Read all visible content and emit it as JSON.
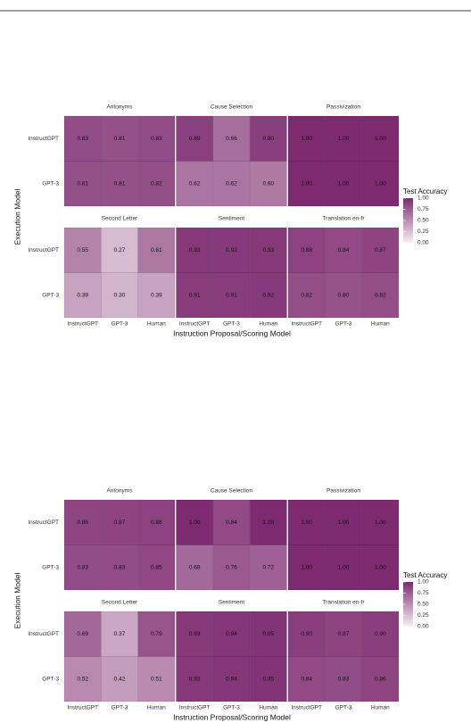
{
  "chart_data": [
    {
      "type": "heatmap",
      "x_label": "Instruction Proposal/Scoring Model",
      "y_label": "Execution Model",
      "x_categories": [
        "InstructGPT",
        "GPT-3",
        "Human"
      ],
      "y_categories": [
        "InstructGPT",
        "GPT-3"
      ],
      "legend_title": "Test Accuracy",
      "clim": [
        0,
        1
      ],
      "cticks": [
        {
          "value": 1,
          "label": "1.00"
        },
        0.75,
        {
          "value": 0.5,
          "label": "0.50"
        },
        0.25,
        {
          "value": 0,
          "label": "0.00"
        }
      ],
      "low_color": "#f7f0f5",
      "high_color": "#7d2a70",
      "facets": [
        {
          "title": "Antonyms",
          "values": [
            [
              0.83,
              0.81,
              0.83
            ],
            [
              0.81,
              0.81,
              0.82
            ]
          ],
          "value_labels": [
            [
              "0.83",
              "0.81",
              "0.83"
            ],
            [
              "0.81",
              "0.81",
              "0.82"
            ]
          ]
        },
        {
          "title": "Cause Selection",
          "values": [
            [
              0.89,
              0.66,
              0.9
            ],
            [
              0.62,
              0.62,
              0.6
            ]
          ],
          "value_labels": [
            [
              "0.89",
              "0.66",
              "0.90"
            ],
            [
              "0.62",
              "0.62",
              "0.60"
            ]
          ]
        },
        {
          "title": "Passivization",
          "values": [
            [
              1,
              1,
              1
            ],
            [
              1,
              1,
              1
            ]
          ],
          "value_labels": [
            [
              "1.00",
              "1.00",
              "1.00"
            ],
            [
              "1.00",
              "1.00",
              "1.00"
            ]
          ]
        },
        {
          "title": "Second Letter",
          "values": [
            [
              0.55,
              0.27,
              0.61
            ],
            [
              0.39,
              0.3,
              0.39
            ]
          ],
          "value_labels": [
            [
              "0.55",
              "0.27",
              "0.61"
            ],
            [
              "0.39",
              "0.30",
              "0.39"
            ]
          ]
        },
        {
          "title": "Sentiment",
          "values": [
            [
              0.93,
              0.92,
              0.93
            ],
            [
              0.91,
              0.91,
              0.92
            ]
          ],
          "value_labels": [
            [
              "0.93",
              "0.92",
              "0.93"
            ],
            [
              "0.91",
              "0.91",
              "0.92"
            ]
          ]
        },
        {
          "title": "Translation en-fr",
          "values": [
            [
              0.88,
              0.84,
              0.87
            ],
            [
              0.82,
              0.8,
              0.82
            ]
          ],
          "value_labels": [
            [
              "0.88",
              "0.84",
              "0.87"
            ],
            [
              "0.82",
              "0.80",
              "0.82"
            ]
          ]
        }
      ]
    },
    {
      "type": "heatmap",
      "x_label": "Instruction Proposal/Scoring Model",
      "y_label": "Execution Model",
      "x_categories": [
        "InstructGPT",
        "GPT-3",
        "Human"
      ],
      "y_categories": [
        "InstructGPT",
        "GPT-3"
      ],
      "legend_title": "Test Accuracy",
      "clim": [
        0,
        1
      ],
      "cticks": [
        {
          "value": 1,
          "label": "1.00"
        },
        0.75,
        {
          "value": 0.5,
          "label": "0.50"
        },
        0.25,
        {
          "value": 0,
          "label": "0.00"
        }
      ],
      "low_color": "#f7f0f5",
      "high_color": "#7d2a70",
      "facets": [
        {
          "title": "Antonyms",
          "values": [
            [
              0.86,
              0.87,
              0.88
            ],
            [
              0.83,
              0.83,
              0.85
            ]
          ],
          "value_labels": [
            [
              "0.86",
              "0.87",
              "0.88"
            ],
            [
              "0.83",
              "0.83",
              "0.85"
            ]
          ]
        },
        {
          "title": "Cause Selection",
          "values": [
            [
              1,
              0.84,
              1
            ],
            [
              0.68,
              0.76,
              0.72
            ]
          ],
          "value_labels": [
            [
              "1.00",
              "0.84",
              "1.00"
            ],
            [
              "0.68",
              "0.76",
              "0.72"
            ]
          ]
        },
        {
          "title": "Passivization",
          "values": [
            [
              1,
              1,
              1
            ],
            [
              1,
              1,
              1
            ]
          ],
          "value_labels": [
            [
              "1.00",
              "1.00",
              "1.00"
            ],
            [
              "1.00",
              "1.00",
              "1.00"
            ]
          ]
        },
        {
          "title": "Second Letter",
          "values": [
            [
              0.69,
              0.37,
              0.79
            ],
            [
              0.52,
              0.42,
              0.51
            ]
          ],
          "value_labels": [
            [
              "0.69",
              "0.37",
              "0.79"
            ],
            [
              "0.52",
              "0.42",
              "0.51"
            ]
          ]
        },
        {
          "title": "Sentiment",
          "values": [
            [
              0.93,
              0.94,
              0.95
            ],
            [
              0.93,
              0.94,
              0.95
            ]
          ],
          "value_labels": [
            [
              "0.93",
              "0.94",
              "0.95"
            ],
            [
              "0.93",
              "0.94",
              "0.95"
            ]
          ]
        },
        {
          "title": "Translation en-fr",
          "values": [
            [
              0.9,
              0.87,
              0.9
            ],
            [
              0.84,
              0.83,
              0.86
            ]
          ],
          "value_labels": [
            [
              "0.90",
              "0.87",
              "0.90"
            ],
            [
              "0.84",
              "0.83",
              "0.86"
            ]
          ]
        }
      ]
    }
  ]
}
